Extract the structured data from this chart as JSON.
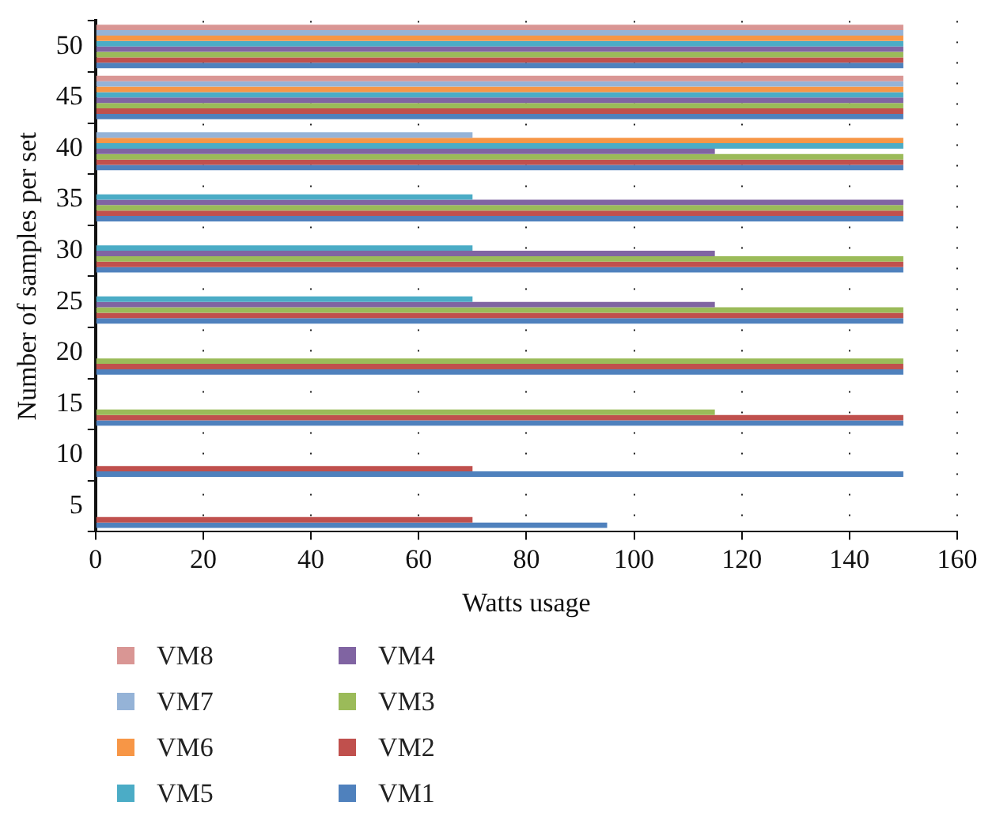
{
  "chart_data": {
    "type": "bar",
    "orientation": "horizontal",
    "xlabel": "Watts usage",
    "ylabel": "Number of samples per set",
    "categories": [
      "50",
      "45",
      "40",
      "35",
      "30",
      "25",
      "20",
      "15",
      "10",
      "5"
    ],
    "xlim": [
      0,
      160
    ],
    "xticks": [
      0,
      20,
      40,
      60,
      80,
      100,
      120,
      140,
      160
    ],
    "grid": "x",
    "legend": "bottom",
    "series": [
      {
        "name": "VM8",
        "color": "#d99694",
        "values": [
          150,
          150,
          null,
          null,
          null,
          null,
          null,
          null,
          null,
          null
        ]
      },
      {
        "name": "VM7",
        "color": "#95b3d7",
        "values": [
          150,
          150,
          70,
          null,
          null,
          null,
          null,
          null,
          null,
          null
        ]
      },
      {
        "name": "VM6",
        "color": "#f79646",
        "values": [
          150,
          150,
          150,
          null,
          null,
          null,
          null,
          null,
          null,
          null
        ]
      },
      {
        "name": "VM5",
        "color": "#4bacc6",
        "values": [
          150,
          150,
          150,
          70,
          70,
          70,
          null,
          null,
          null,
          null
        ]
      },
      {
        "name": "VM4",
        "color": "#8064a2",
        "values": [
          150,
          150,
          115,
          150,
          115,
          115,
          null,
          null,
          null,
          null
        ]
      },
      {
        "name": "VM3",
        "color": "#9bbb59",
        "values": [
          150,
          150,
          150,
          150,
          150,
          150,
          150,
          115,
          null,
          null
        ]
      },
      {
        "name": "VM2",
        "color": "#c0504d",
        "values": [
          150,
          150,
          150,
          150,
          150,
          150,
          150,
          150,
          70,
          70
        ]
      },
      {
        "name": "VM1",
        "color": "#4f81bd",
        "values": [
          150,
          150,
          150,
          150,
          150,
          150,
          150,
          150,
          150,
          95
        ]
      }
    ]
  }
}
